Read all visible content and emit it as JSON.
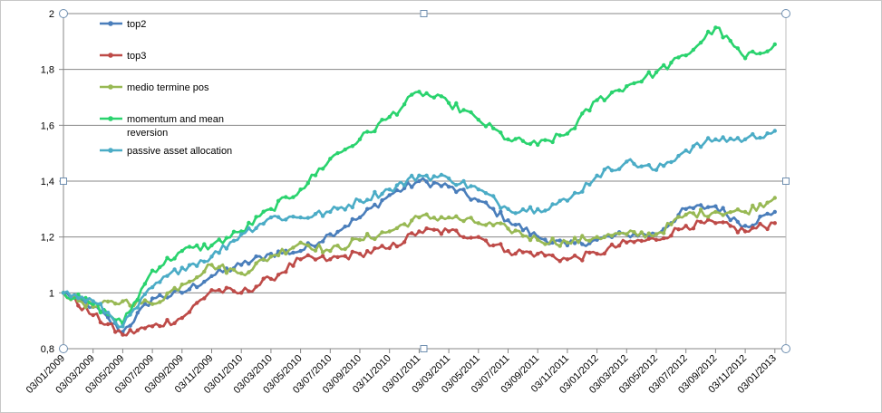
{
  "chart_data": {
    "type": "line",
    "title": "",
    "xlabel": "",
    "ylabel": "",
    "ylim": [
      0.8,
      2.0
    ],
    "y_ticks": [
      "0,8",
      "1",
      "1,2",
      "1,4",
      "1,6",
      "1,8",
      "2"
    ],
    "x_ticks": [
      "03/01/2009",
      "03/03/2009",
      "03/05/2009",
      "03/07/2009",
      "03/09/2009",
      "03/11/2009",
      "03/01/2010",
      "03/03/2010",
      "03/05/2010",
      "03/07/2010",
      "03/09/2010",
      "03/11/2010",
      "03/01/2011",
      "03/03/2011",
      "03/05/2011",
      "03/07/2011",
      "03/09/2011",
      "03/11/2011",
      "03/01/2012",
      "03/03/2012",
      "03/05/2012",
      "03/07/2012",
      "03/09/2012",
      "03/11/2012",
      "03/01/2013"
    ],
    "grid": "horizontal",
    "legend_position": "top-left inside",
    "series": [
      {
        "name": "top2",
        "color": "#4a7ebb",
        "values": [
          1.0,
          0.95,
          0.86,
          0.98,
          1.0,
          1.06,
          1.1,
          1.14,
          1.15,
          1.21,
          1.27,
          1.35,
          1.4,
          1.38,
          1.33,
          1.26,
          1.2,
          1.17,
          1.19,
          1.21,
          1.21,
          1.3,
          1.31,
          1.24,
          1.29
        ]
      },
      {
        "name": "top3",
        "color": "#be4b48",
        "values": [
          1.0,
          0.92,
          0.85,
          0.88,
          0.91,
          1.01,
          1.0,
          1.05,
          1.12,
          1.12,
          1.14,
          1.16,
          1.22,
          1.22,
          1.2,
          1.15,
          1.14,
          1.12,
          1.14,
          1.18,
          1.19,
          1.24,
          1.25,
          1.22,
          1.25
        ]
      },
      {
        "name": "medio termine pos",
        "color": "#98b954",
        "values": [
          1.0,
          0.95,
          0.97,
          0.96,
          1.03,
          1.1,
          1.07,
          1.13,
          1.18,
          1.15,
          1.19,
          1.22,
          1.27,
          1.27,
          1.25,
          1.23,
          1.19,
          1.18,
          1.2,
          1.21,
          1.21,
          1.28,
          1.29,
          1.29,
          1.34
        ]
      },
      {
        "name": "momentum and mean reversion",
        "color": "#2ad36e",
        "values": [
          1.0,
          0.96,
          0.89,
          1.08,
          1.15,
          1.17,
          1.22,
          1.3,
          1.37,
          1.48,
          1.55,
          1.63,
          1.72,
          1.68,
          1.62,
          1.55,
          1.53,
          1.57,
          1.69,
          1.74,
          1.79,
          1.85,
          1.95,
          1.84,
          1.89
        ]
      },
      {
        "name": "passive asset allocation",
        "color": "#4bacc6",
        "values": [
          1.0,
          0.97,
          0.88,
          1.02,
          1.09,
          1.13,
          1.21,
          1.27,
          1.27,
          1.29,
          1.33,
          1.37,
          1.42,
          1.41,
          1.37,
          1.3,
          1.3,
          1.33,
          1.42,
          1.47,
          1.44,
          1.51,
          1.55,
          1.55,
          1.58
        ]
      }
    ]
  }
}
